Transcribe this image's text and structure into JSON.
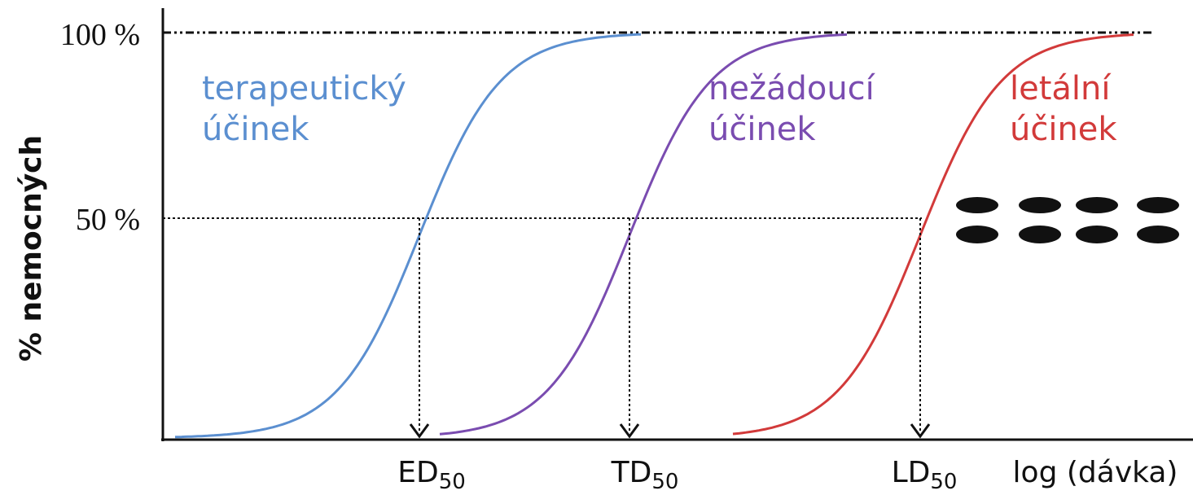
{
  "y_axis": {
    "label": "% nemocných",
    "ticks": [
      "100 %",
      "50 %"
    ]
  },
  "x_axis": {
    "label": "log (dávka)"
  },
  "curves": [
    {
      "label_lines": [
        "terapeutický",
        "účinek"
      ],
      "marker": {
        "base": "ED",
        "sub": "50"
      }
    },
    {
      "label_lines": [
        "nežádoucí",
        "účinek"
      ],
      "marker": {
        "base": "TD",
        "sub": "50"
      }
    },
    {
      "label_lines": [
        "letální",
        "účinek"
      ],
      "marker": {
        "base": "LD",
        "sub": "50"
      }
    }
  ]
}
